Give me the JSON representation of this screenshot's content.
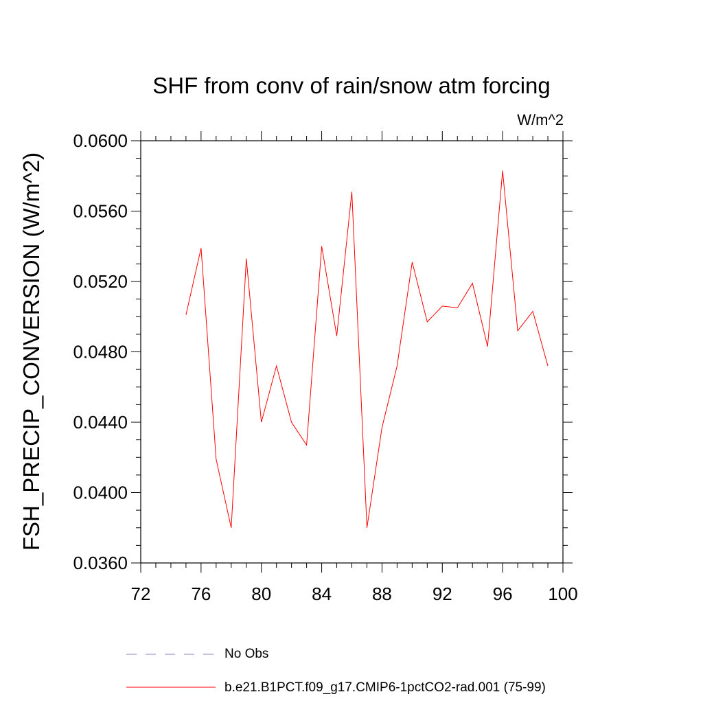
{
  "chart_data": {
    "type": "line",
    "title": "SHF from conv of rain/snow atm forcing",
    "units_label": "W/m^2",
    "ylabel": "FSH_PRECIP_CONVERSION  (W/m^2)",
    "xlabel": "",
    "xlim": [
      72,
      100
    ],
    "ylim": [
      0.036,
      0.06
    ],
    "x_ticks": [
      "72",
      "76",
      "80",
      "84",
      "88",
      "92",
      "96",
      "100"
    ],
    "y_ticks": [
      "0.0360",
      "0.0400",
      "0.0440",
      "0.0480",
      "0.0520",
      "0.0560",
      "0.0600"
    ],
    "grid": false,
    "legend_position": "bottom",
    "series": [
      {
        "name": "No Obs",
        "color": "#8a80c8",
        "style": "dashed",
        "x": [],
        "y": []
      },
      {
        "name": "b.e21.B1PCT.f09_g17.CMIP6-1pctCO2-rad.001 (75-99)",
        "color": "#ff0000",
        "style": "solid",
        "x": [
          75,
          76,
          77,
          78,
          79,
          80,
          81,
          82,
          83,
          84,
          85,
          86,
          87,
          88,
          89,
          90,
          91,
          92,
          93,
          94,
          95,
          96,
          97,
          98,
          99
        ],
        "y": [
          0.0501,
          0.0539,
          0.0419,
          0.038,
          0.0533,
          0.044,
          0.0472,
          0.044,
          0.0427,
          0.054,
          0.0489,
          0.0571,
          0.038,
          0.0437,
          0.0472,
          0.0531,
          0.0497,
          0.0506,
          0.0505,
          0.0519,
          0.0483,
          0.0583,
          0.0492,
          0.0503,
          0.0472
        ]
      }
    ]
  }
}
